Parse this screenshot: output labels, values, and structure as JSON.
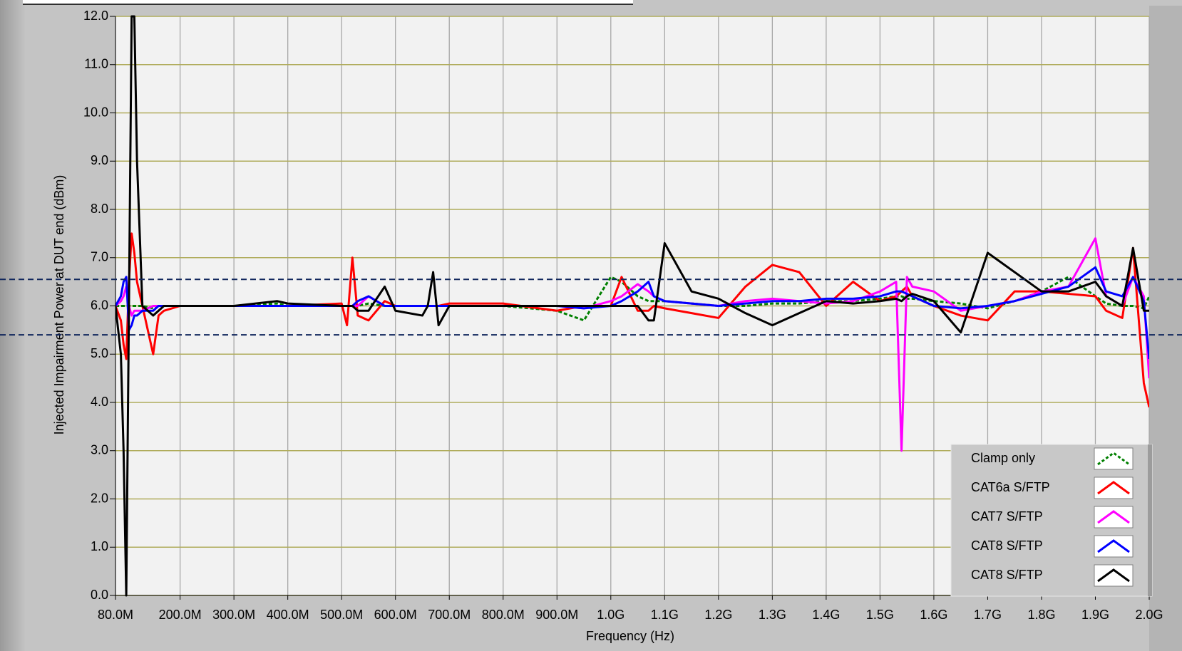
{
  "chart_data": {
    "type": "line",
    "xlabel": "Frequency (Hz)",
    "ylabel": "Injected Impairment Power at DUT end (dBm)",
    "x": [
      80000000,
      90000000,
      95000000,
      100000000,
      105000000,
      110000000,
      115000000,
      120000000,
      130000000,
      150000000,
      160000000,
      170000000,
      200000000,
      300000000,
      380000000,
      400000000,
      500000000,
      510000000,
      520000000,
      530000000,
      550000000,
      580000000,
      600000000,
      650000000,
      660000000,
      670000000,
      680000000,
      700000000,
      800000000,
      900000000,
      950000000,
      1000000000,
      1020000000,
      1050000000,
      1070000000,
      1080000000,
      1100000000,
      1150000000,
      1200000000,
      1250000000,
      1300000000,
      1350000000,
      1400000000,
      1450000000,
      1500000000,
      1530000000,
      1540000000,
      1550000000,
      1560000000,
      1600000000,
      1650000000,
      1700000000,
      1750000000,
      1800000000,
      1850000000,
      1900000000,
      1920000000,
      1950000000,
      1970000000,
      1990000000,
      2000000000
    ],
    "series": [
      {
        "name": "Clamp only",
        "color": "#008000",
        "dashed": true,
        "values": [
          6.0,
          6.0,
          6.0,
          6.0,
          6.0,
          6.0,
          6.0,
          6.0,
          6.0,
          5.95,
          6.0,
          6.0,
          6.0,
          6.0,
          6.05,
          6.0,
          6.0,
          6.0,
          6.0,
          6.0,
          6.05,
          6.0,
          6.0,
          6.0,
          6.0,
          6.0,
          6.0,
          6.0,
          6.0,
          5.9,
          5.7,
          6.6,
          6.5,
          6.2,
          6.1,
          6.1,
          6.1,
          6.05,
          6.0,
          6.0,
          6.05,
          6.05,
          6.1,
          6.1,
          6.15,
          6.2,
          6.2,
          6.15,
          6.15,
          6.1,
          6.05,
          5.95,
          6.1,
          6.3,
          6.6,
          6.2,
          6.05,
          6.0,
          6.0,
          5.95,
          6.2
        ]
      },
      {
        "name": "CAT6a S/FTP",
        "color": "#ff0000",
        "values": [
          6.0,
          5.7,
          5.2,
          4.9,
          6.5,
          7.5,
          7.1,
          6.5,
          6.0,
          5.0,
          5.8,
          5.9,
          6.0,
          6.0,
          6.0,
          6.0,
          6.05,
          5.6,
          7.0,
          5.8,
          5.7,
          6.1,
          6.0,
          6.0,
          6.0,
          6.0,
          6.0,
          6.05,
          6.05,
          5.9,
          6.0,
          6.0,
          6.6,
          5.9,
          5.9,
          6.0,
          5.95,
          5.85,
          5.75,
          6.4,
          6.85,
          6.7,
          6.0,
          6.5,
          6.1,
          6.2,
          6.3,
          6.4,
          6.2,
          6.0,
          5.8,
          5.7,
          6.3,
          6.3,
          6.25,
          6.2,
          5.9,
          5.75,
          7.2,
          4.4,
          3.9
        ]
      },
      {
        "name": "CAT7 S/FTP",
        "color": "#ff00ff",
        "values": [
          6.0,
          6.1,
          6.2,
          6.4,
          6.0,
          5.8,
          5.9,
          5.9,
          5.9,
          6.0,
          6.0,
          6.0,
          6.0,
          6.0,
          6.0,
          6.0,
          6.0,
          6.0,
          6.0,
          6.0,
          6.2,
          6.0,
          6.0,
          6.0,
          6.0,
          6.0,
          6.0,
          6.0,
          6.0,
          6.0,
          5.95,
          6.1,
          6.2,
          6.45,
          6.3,
          6.2,
          6.1,
          6.05,
          6.0,
          6.1,
          6.15,
          6.1,
          6.05,
          6.1,
          6.3,
          6.5,
          3.0,
          6.6,
          6.4,
          6.3,
          5.9,
          6.0,
          6.1,
          6.3,
          6.4,
          7.4,
          6.2,
          6.0,
          6.6,
          6.2,
          4.5
        ]
      },
      {
        "name": "CAT8 S/FTP",
        "color": "#0000ff",
        "values": [
          6.0,
          6.2,
          6.5,
          6.6,
          5.5,
          5.6,
          5.8,
          5.8,
          5.9,
          5.9,
          6.0,
          6.0,
          6.0,
          6.0,
          6.0,
          6.0,
          6.0,
          6.0,
          6.0,
          6.1,
          6.2,
          6.0,
          6.0,
          6.0,
          6.0,
          6.0,
          6.0,
          6.0,
          6.0,
          6.0,
          5.95,
          6.0,
          6.1,
          6.3,
          6.5,
          6.2,
          6.1,
          6.05,
          6.0,
          6.05,
          6.1,
          6.1,
          6.15,
          6.15,
          6.2,
          6.3,
          6.3,
          6.25,
          6.2,
          6.0,
          5.95,
          6.0,
          6.1,
          6.25,
          6.4,
          6.8,
          6.3,
          6.2,
          6.6,
          6.1,
          4.9
        ]
      },
      {
        "name": "CAT8 S/FTP",
        "color": "#000000",
        "values": [
          6.0,
          5.0,
          3.0,
          0.0,
          6.0,
          12.0,
          12.0,
          9.0,
          6.0,
          5.8,
          5.9,
          6.0,
          6.0,
          6.0,
          6.1,
          6.05,
          6.0,
          6.0,
          6.0,
          5.9,
          5.9,
          6.4,
          5.9,
          5.8,
          6.0,
          6.7,
          5.6,
          6.0,
          6.0,
          6.0,
          6.0,
          6.0,
          6.0,
          6.0,
          5.7,
          5.7,
          7.3,
          6.3,
          6.15,
          5.85,
          5.6,
          5.85,
          6.1,
          6.05,
          6.1,
          6.15,
          6.1,
          6.2,
          6.25,
          6.1,
          5.45,
          7.1,
          6.7,
          6.3,
          6.3,
          6.5,
          6.2,
          6.0,
          7.2,
          5.9,
          5.9
        ]
      }
    ],
    "xlim": [
      80000000,
      2000000000
    ],
    "xticks": [
      {
        "value": 80000000,
        "label": "80.0M"
      },
      {
        "value": 200000000,
        "label": "200.0M"
      },
      {
        "value": 300000000,
        "label": "300.0M"
      },
      {
        "value": 400000000,
        "label": "400.0M"
      },
      {
        "value": 500000000,
        "label": "500.0M"
      },
      {
        "value": 600000000,
        "label": "600.0M"
      },
      {
        "value": 700000000,
        "label": "700.0M"
      },
      {
        "value": 800000000,
        "label": "800.0M"
      },
      {
        "value": 900000000,
        "label": "900.0M"
      },
      {
        "value": 1000000000,
        "label": "1.0G"
      },
      {
        "value": 1100000000,
        "label": "1.1G"
      },
      {
        "value": 1200000000,
        "label": "1.2G"
      },
      {
        "value": 1300000000,
        "label": "1.3G"
      },
      {
        "value": 1400000000,
        "label": "1.4G"
      },
      {
        "value": 1500000000,
        "label": "1.5G"
      },
      {
        "value": 1600000000,
        "label": "1.6G"
      },
      {
        "value": 1700000000,
        "label": "1.7G"
      },
      {
        "value": 1800000000,
        "label": "1.8G"
      },
      {
        "value": 1900000000,
        "label": "1.9G"
      },
      {
        "value": 2000000000,
        "label": "2.0G"
      }
    ],
    "ylim": [
      0,
      12
    ],
    "yticks": [
      {
        "value": 0,
        "label": "0.0"
      },
      {
        "value": 1,
        "label": "1.0"
      },
      {
        "value": 2,
        "label": "2.0"
      },
      {
        "value": 3,
        "label": "3.0"
      },
      {
        "value": 4,
        "label": "4.0"
      },
      {
        "value": 5,
        "label": "5.0"
      },
      {
        "value": 6,
        "label": "6.0"
      },
      {
        "value": 7,
        "label": "7.0"
      },
      {
        "value": 8,
        "label": "8.0"
      },
      {
        "value": 9,
        "label": "9.0"
      },
      {
        "value": 10,
        "label": "10.0"
      },
      {
        "value": 11,
        "label": "11.0"
      },
      {
        "value": 12,
        "label": "12.0"
      }
    ],
    "hlines": [
      6.55,
      5.4
    ],
    "grid": true,
    "legend": "lower right"
  }
}
